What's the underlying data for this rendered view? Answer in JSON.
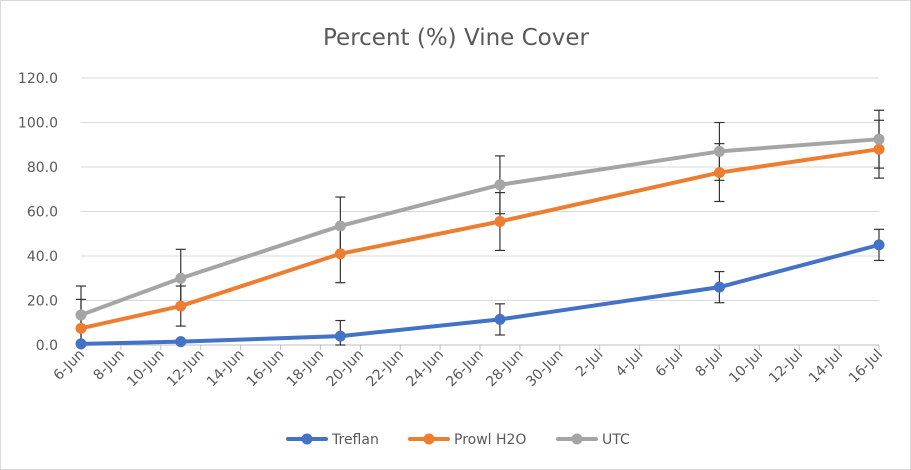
{
  "chart_data": {
    "type": "line",
    "title": "Percent (%) Vine Cover",
    "xlabel": "",
    "ylabel": "",
    "x_ticks": [
      "6-Jun",
      "8-Jun",
      "10-Jun",
      "12-Jun",
      "14-Jun",
      "16-Jun",
      "18-Jun",
      "20-Jun",
      "22-Jun",
      "24-Jun",
      "26-Jun",
      "28-Jun",
      "30-Jun",
      "2-Jul",
      "4-Jul",
      "6-Jul",
      "8-Jul",
      "10-Jul",
      "12-Jul",
      "14-Jul",
      "16-Jul"
    ],
    "x_range": [
      "2000-06-06",
      "2000-07-16"
    ],
    "ylim": [
      0,
      120
    ],
    "y_ticks": [
      "0.0",
      "20.0",
      "40.0",
      "60.0",
      "80.0",
      "100.0",
      "120.0"
    ],
    "grid": true,
    "legend_position": "bottom",
    "x": [
      "2000-06-06",
      "2000-06-11",
      "2000-06-19",
      "2000-06-27",
      "2000-07-08",
      "2000-07-16"
    ],
    "series": [
      {
        "name": "Treflan",
        "color": "#4472c4",
        "values": [
          0.5,
          1.5,
          4.0,
          11.5,
          26.0,
          45.0
        ],
        "error": [
          0,
          0,
          7.0,
          7.0,
          7.0,
          7.0
        ]
      },
      {
        "name": "Prowl H2O",
        "color": "#ed7d31",
        "values": [
          7.5,
          17.5,
          41.0,
          55.5,
          77.5,
          88.0
        ],
        "error": [
          13.0,
          9.0,
          13.0,
          13.0,
          13.0,
          13.0
        ]
      },
      {
        "name": "UTC",
        "color": "#a5a5a5",
        "values": [
          13.5,
          30.0,
          53.5,
          72.0,
          87.0,
          92.5
        ],
        "error": [
          13.0,
          13.0,
          13.0,
          13.0,
          13.0,
          13.0
        ]
      }
    ]
  }
}
